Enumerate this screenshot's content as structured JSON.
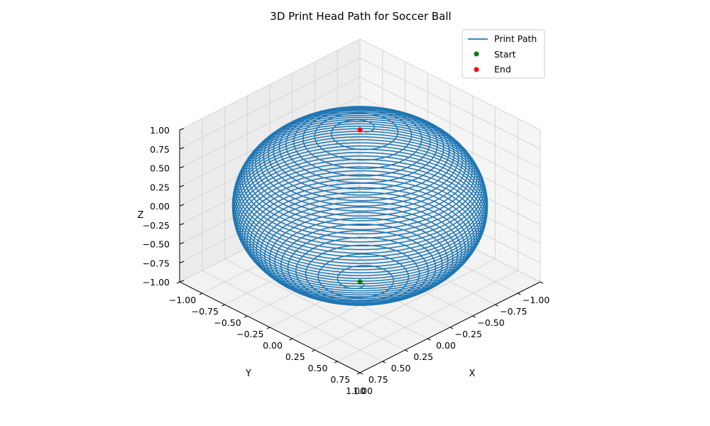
{
  "chart_data": {
    "type": "line3d",
    "title": "3D Print Head Path for Soccer Ball",
    "xlabel": "X",
    "ylabel": "Y",
    "zlabel": "Z",
    "xlim": [
      -1.0,
      1.0
    ],
    "ylim": [
      -1.0,
      1.0
    ],
    "zlim": [
      -1.0,
      1.0
    ],
    "xticks": [
      "−1.00",
      "−0.75",
      "−0.50",
      "−0.25",
      "0.00",
      "0.25",
      "0.50",
      "0.75",
      "1.00"
    ],
    "yticks": [
      "−1.00",
      "−0.75",
      "−0.50",
      "−0.25",
      "0.00",
      "0.25",
      "0.50",
      "0.75",
      "1.00"
    ],
    "zticks": [
      "−1.00",
      "−0.75",
      "−0.50",
      "−0.25",
      "0.00",
      "0.25",
      "0.50",
      "0.75",
      "1.00"
    ],
    "grid": true,
    "legend_position": "upper-right",
    "series": [
      {
        "name": "Print Path",
        "kind": "spiral-sphere",
        "radius": 1.0,
        "turns": 50,
        "z_start": -1.0,
        "z_end": 1.0,
        "color": "#1f77b4"
      }
    ],
    "points": [
      {
        "name": "Start",
        "x": 0.0,
        "y": 0.0,
        "z": -1.0,
        "color": "#008000"
      },
      {
        "name": "End",
        "x": 0.0,
        "y": 0.0,
        "z": 1.0,
        "color": "#ff0000"
      }
    ]
  }
}
